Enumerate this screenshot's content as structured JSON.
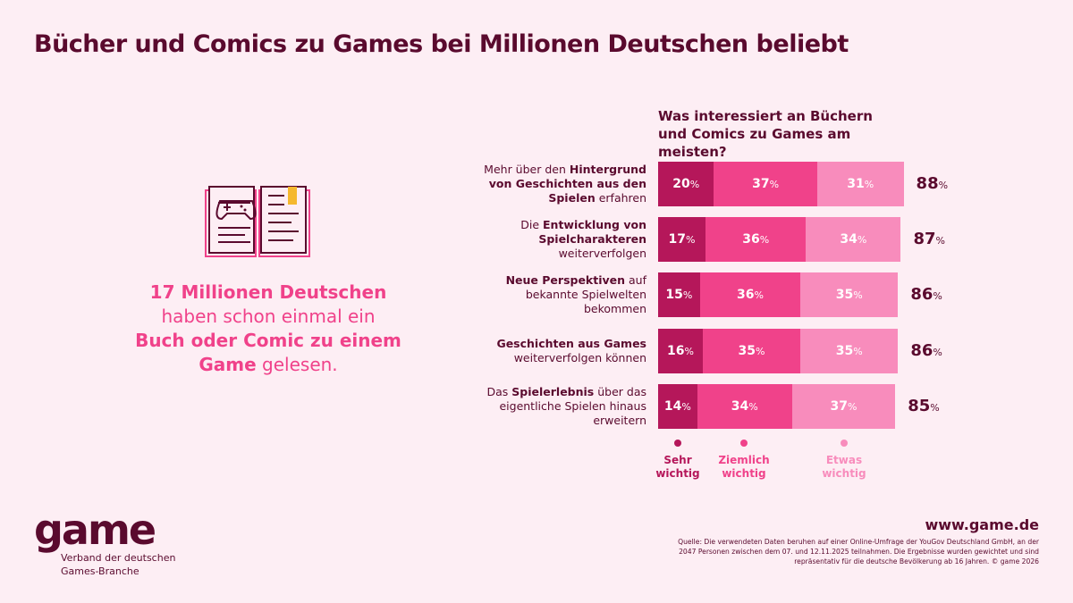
{
  "title": "Bücher und Comics zu Games bei Millionen Deutschen beliebt",
  "headline": {
    "bold1": "17 Millionen Deutschen",
    "normal1": "haben schon einmal ein",
    "bold2": "Buch oder Comic zu einem Game",
    "normal2": "gelesen."
  },
  "icon": "book-with-gamepad-icon",
  "colors": {
    "background": "#fdeef4",
    "text": "#5a0a2e",
    "sehr": "#b5175a",
    "ziemlich": "#f0428a",
    "etwas": "#f88cbc"
  },
  "chart_data": {
    "type": "bar",
    "stacked": true,
    "orientation": "horizontal",
    "title": "Was interessiert an Büchern und Comics zu Games am meisten?",
    "categories": [
      [
        {
          "t": "Mehr über den ",
          "b": false
        },
        {
          "t": "Hintergrund von Geschichten aus den Spielen",
          "b": true
        },
        {
          "t": " erfahren",
          "b": false
        }
      ],
      [
        {
          "t": "Die ",
          "b": false
        },
        {
          "t": "Entwicklung von Spielcharakteren",
          "b": true
        },
        {
          "t": " weiterverfolgen",
          "b": false
        }
      ],
      [
        {
          "t": "Neue Perspektiven",
          "b": true
        },
        {
          "t": " auf bekannte Spielwelten bekommen",
          "b": false
        }
      ],
      [
        {
          "t": "Geschichten aus Games",
          "b": true
        },
        {
          "t": " weiterverfolgen können",
          "b": false
        }
      ],
      [
        {
          "t": "Das ",
          "b": false
        },
        {
          "t": "Spielerlebnis",
          "b": true
        },
        {
          "t": " über das eigentliche Spielen hinaus erweitern",
          "b": false
        }
      ]
    ],
    "series": [
      {
        "name": "Sehr wichtig",
        "values": [
          20,
          17,
          15,
          16,
          14
        ]
      },
      {
        "name": "Ziemlich wichtig",
        "values": [
          37,
          36,
          36,
          35,
          34
        ]
      },
      {
        "name": "Etwas wichtig",
        "values": [
          31,
          34,
          35,
          35,
          37
        ]
      }
    ],
    "totals": [
      88,
      87,
      86,
      86,
      85
    ],
    "unit": "%",
    "legend": "bottom"
  },
  "footer": {
    "logo": "game",
    "sub1": "Verband der deutschen",
    "sub2": "Games-Branche",
    "website": "www.game.de",
    "source": "Quelle: Die verwendeten Daten beruhen auf einer Online-Umfrage der YouGov Deutschland GmbH, an der 2047 Personen zwischen dem 07. und 12.11.2025 teilnahmen. Die Ergebnisse wurden gewichtet und sind repräsentativ für die deutsche Bevölkerung ab 16 Jahren. © game 2026"
  }
}
